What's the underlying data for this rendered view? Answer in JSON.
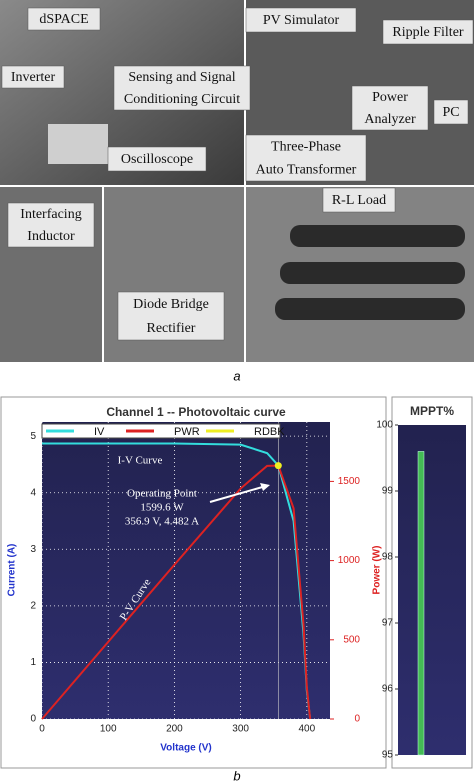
{
  "photo_labels": [
    {
      "lines": [
        "dSPACE"
      ]
    },
    {
      "lines": [
        "Inverter"
      ]
    },
    {
      "lines": [
        "Sensing and Signal",
        "Conditioning Circuit"
      ]
    },
    {
      "lines": [
        "Oscilloscope"
      ]
    },
    {
      "lines": [
        "PV Simulator"
      ]
    },
    {
      "lines": [
        "Ripple Filter"
      ]
    },
    {
      "lines": [
        "Power",
        "Analyzer"
      ]
    },
    {
      "lines": [
        "PC"
      ]
    },
    {
      "lines": [
        "Three-Phase",
        "Auto Transformer"
      ]
    },
    {
      "lines": [
        "Interfacing",
        "Inductor"
      ]
    },
    {
      "lines": [
        "Diode Bridge",
        "Rectifier"
      ]
    },
    {
      "lines": [
        "R-L Load"
      ]
    }
  ],
  "caption_a": "a",
  "caption_b": "b",
  "chart_data": [
    {
      "type": "line",
      "title": "Channel 1 -- Photovoltaic curve",
      "x_label": "Voltage (V)",
      "y_label": "Current (A)",
      "y2_label": "Power (W)",
      "x": [
        0,
        100,
        200,
        300,
        340,
        356.9,
        380,
        395,
        400,
        405
      ],
      "series": [
        {
          "name": "IV",
          "color": "#33dddd",
          "values": [
            4.87,
            4.87,
            4.87,
            4.85,
            4.7,
            4.482,
            3.5,
            1.5,
            0.5,
            0
          ]
        },
        {
          "name": "PWR",
          "color": "#dd2222",
          "axis": "y2",
          "values": [
            0,
            487,
            974,
            1455,
            1598,
            1599.6,
            1330,
            593,
            200,
            0
          ]
        },
        {
          "name": "RDBK",
          "color": "#eeee22",
          "axis": "y2",
          "marker": true,
          "values": [
            null,
            null,
            null,
            null,
            null,
            1599.6,
            null,
            null,
            null,
            null
          ]
        }
      ],
      "xlim": [
        0,
        435
      ],
      "xticks": [
        0,
        100,
        200,
        300,
        400
      ],
      "ylim": [
        0,
        5.25
      ],
      "yticks": [
        0,
        1,
        2,
        3,
        4,
        5
      ],
      "y2lim": [
        0,
        1875
      ],
      "y2ticks": [
        0,
        500,
        1000,
        1500
      ],
      "grid": true,
      "annotations": [
        "I-V Curve",
        "Operating Point",
        "1599.6 W",
        "356.9 V, 4.482 A",
        "P-V Curve"
      ]
    },
    {
      "type": "bar",
      "title": "MPPT%",
      "values": [
        99.6
      ],
      "color": "#44bb55",
      "ylim": [
        95,
        100
      ],
      "yticks": [
        95,
        96,
        97,
        98,
        99,
        100
      ]
    }
  ]
}
